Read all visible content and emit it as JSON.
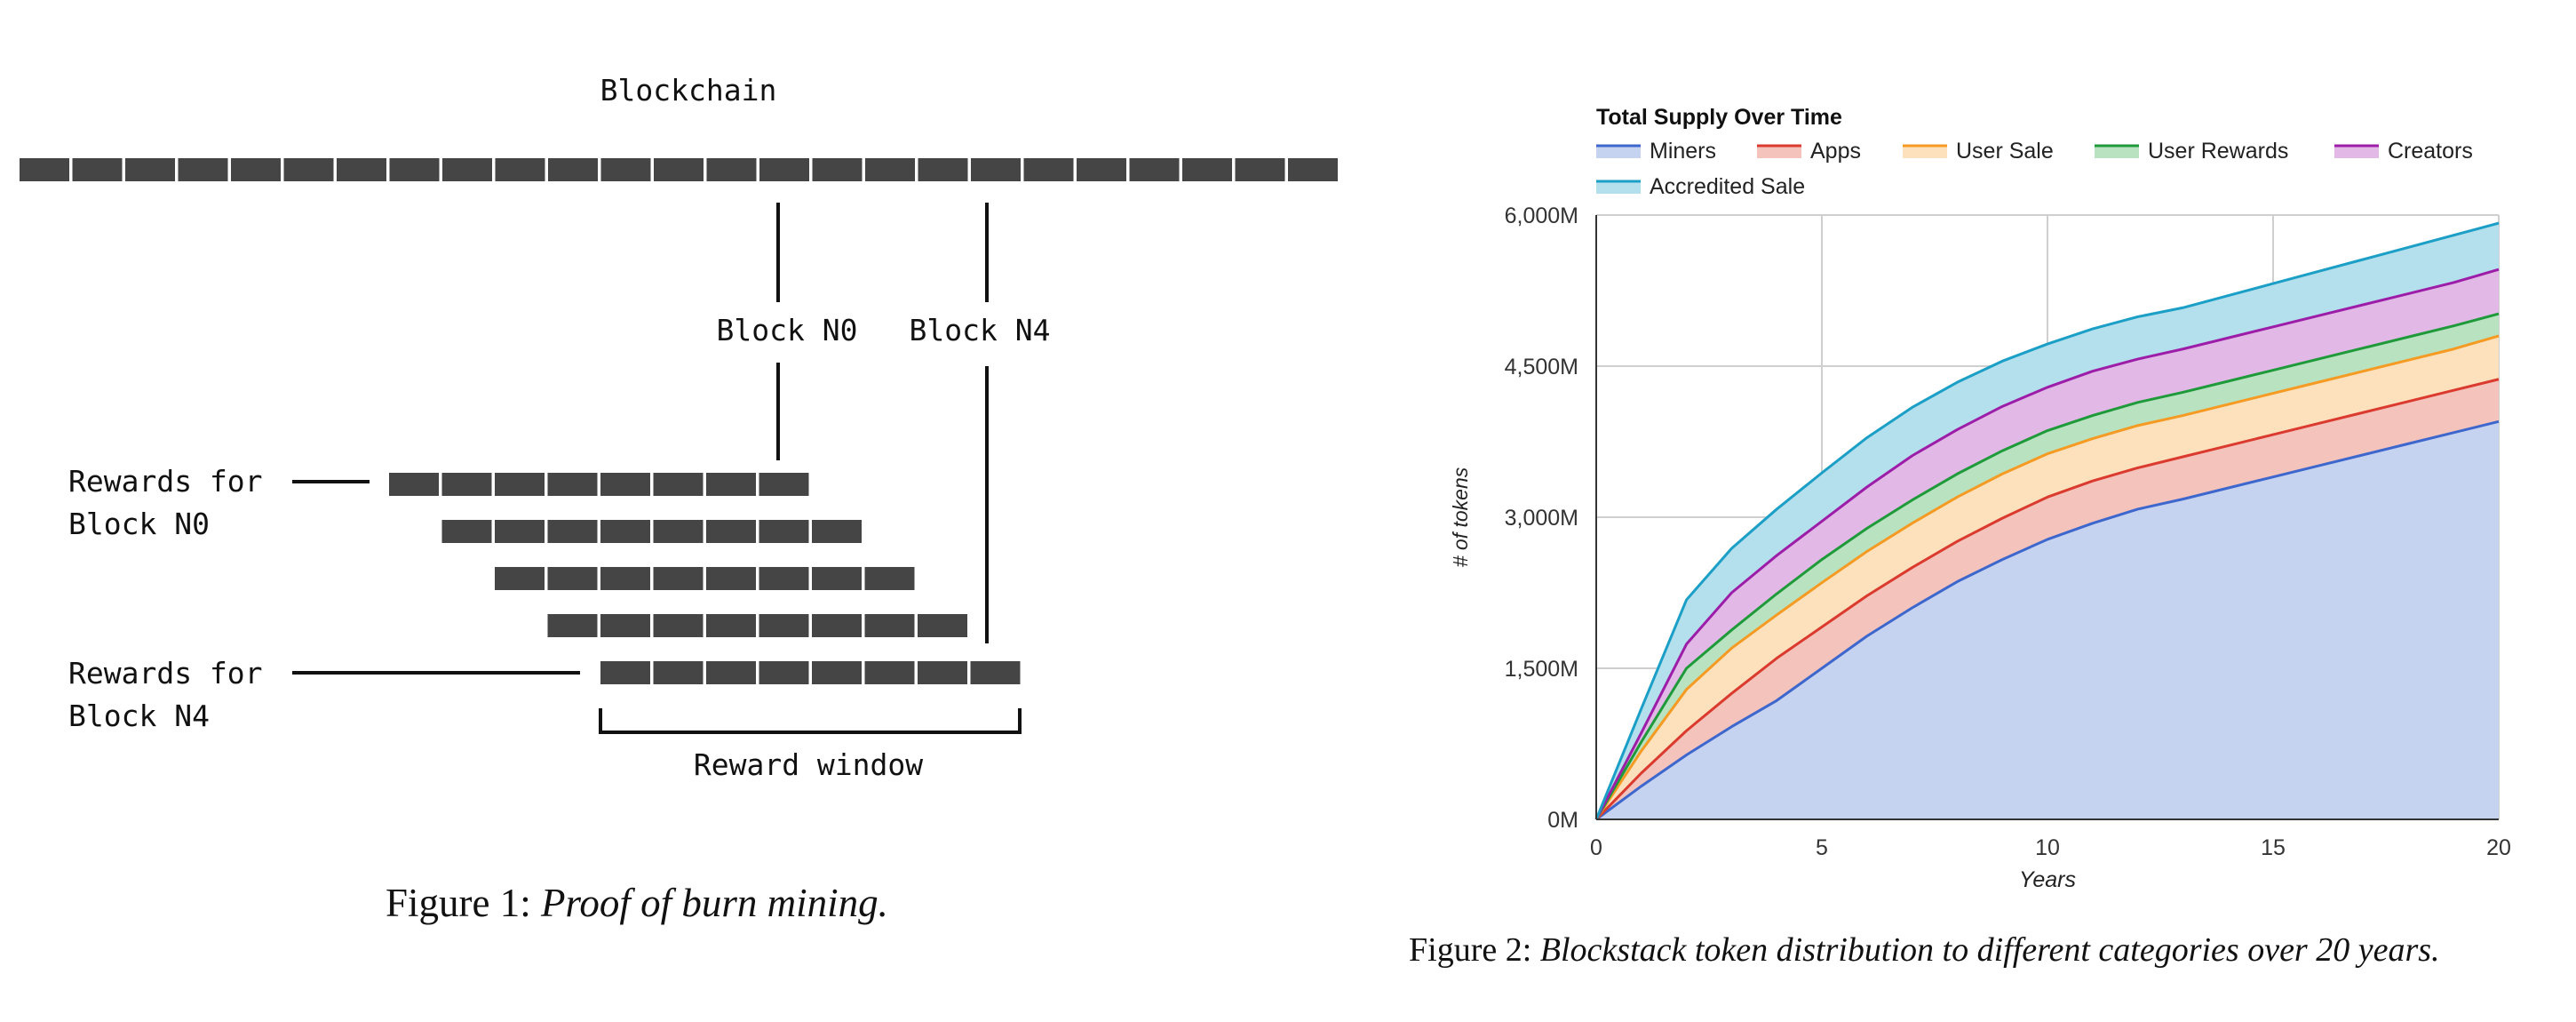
{
  "figure1": {
    "title": "Blockchain",
    "block_n0_label": "Block N0",
    "block_n4_label": "Block N4",
    "rewards_n0_line1": "Rewards for",
    "rewards_n0_line2": "Block N0",
    "rewards_n4_line1": "Rewards for",
    "rewards_n4_line2": "Block N4",
    "reward_window_label": "Reward window",
    "blockchain_blocks": 25,
    "reward_rows": 5,
    "blocks_per_reward_row": 8,
    "block_color": "#454545",
    "caption_prefix": "Figure 1:",
    "caption_text": "Proof of burn mining."
  },
  "figure2": {
    "caption_prefix": "Figure 2:",
    "caption_text": "Blockstack token distribution to different categories over 20 years."
  },
  "chart_data": {
    "type": "area",
    "stacked": true,
    "title": "Total Supply Over Time",
    "xlabel": "Years",
    "ylabel": "# of tokens",
    "xlim": [
      0,
      20
    ],
    "ylim": [
      0,
      6000
    ],
    "x_ticks": [
      "0",
      "5",
      "10",
      "15",
      "20"
    ],
    "y_ticks": [
      "0M",
      "1,500M",
      "3,000M",
      "4,500M",
      "6,000M"
    ],
    "grid": true,
    "legend_position": "top",
    "x": [
      0,
      1,
      2,
      3,
      4,
      5,
      6,
      7,
      8,
      9,
      10,
      11,
      12,
      13,
      14,
      15,
      16,
      17,
      18,
      19,
      20
    ],
    "series": [
      {
        "name": "Miners",
        "color": "#3d67cc",
        "fill": "#c5d2f0",
        "cumulative": [
          0,
          330,
          640,
          920,
          1180,
          1500,
          1820,
          2100,
          2360,
          2580,
          2780,
          2940,
          3080,
          3180,
          3290,
          3400,
          3510,
          3620,
          3730,
          3840,
          3950
        ]
      },
      {
        "name": "Apps",
        "color": "#db3a2e",
        "fill": "#f3c3bc",
        "cumulative": [
          0,
          460,
          880,
          1250,
          1600,
          1910,
          2220,
          2500,
          2760,
          2990,
          3200,
          3360,
          3490,
          3600,
          3710,
          3820,
          3930,
          4040,
          4150,
          4260,
          4370
        ]
      },
      {
        "name": "User Sale",
        "color": "#f59a23",
        "fill": "#fde1bd",
        "cumulative": [
          0,
          680,
          1290,
          1700,
          2030,
          2350,
          2660,
          2940,
          3200,
          3430,
          3630,
          3780,
          3910,
          4010,
          4120,
          4230,
          4340,
          4450,
          4560,
          4670,
          4800
        ]
      },
      {
        "name": "User Rewards",
        "color": "#1f9a3a",
        "fill": "#b8e2c0",
        "cumulative": [
          0,
          770,
          1500,
          1880,
          2240,
          2580,
          2890,
          3170,
          3430,
          3660,
          3860,
          4010,
          4140,
          4240,
          4350,
          4460,
          4570,
          4680,
          4790,
          4900,
          5020
        ]
      },
      {
        "name": "Creators",
        "color": "#9c1ea8",
        "fill": "#e2b8e6",
        "cumulative": [
          0,
          860,
          1740,
          2250,
          2620,
          2960,
          3300,
          3610,
          3870,
          4100,
          4290,
          4450,
          4570,
          4670,
          4780,
          4890,
          5000,
          5110,
          5220,
          5330,
          5460
        ]
      },
      {
        "name": "Accredited Sale",
        "color": "#1b9fc6",
        "fill": "#b4dfec",
        "cumulative": [
          0,
          1100,
          2180,
          2690,
          3080,
          3440,
          3790,
          4090,
          4340,
          4550,
          4720,
          4870,
          4990,
          5080,
          5200,
          5320,
          5440,
          5560,
          5680,
          5800,
          5920
        ]
      }
    ]
  }
}
